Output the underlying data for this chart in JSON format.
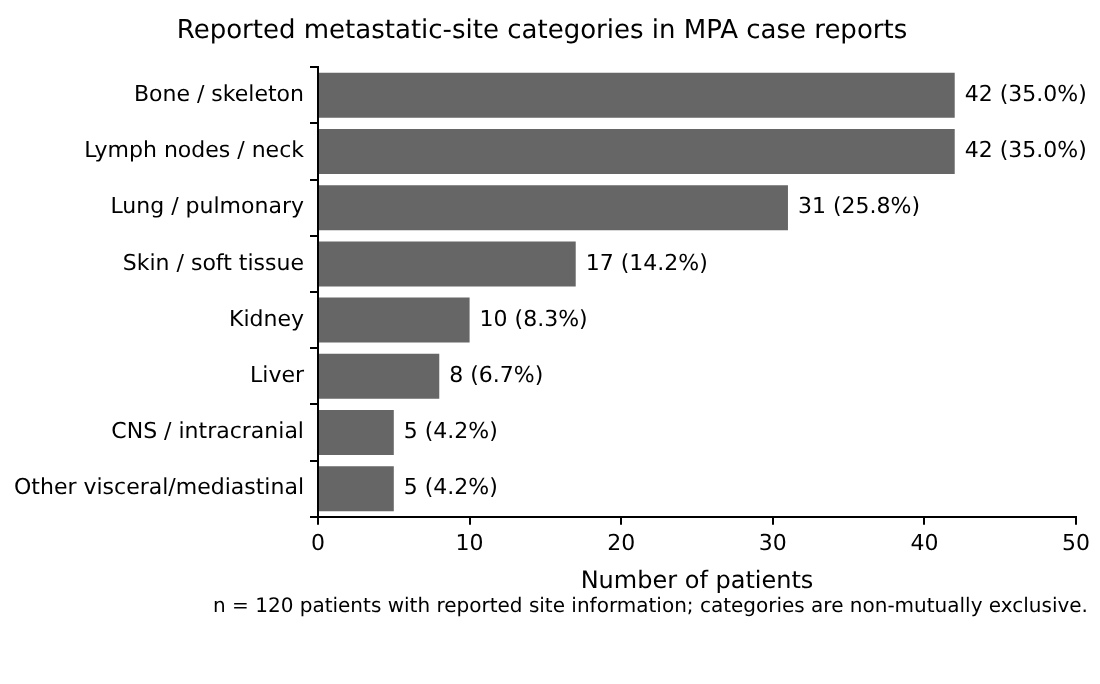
{
  "chart_data": {
    "type": "bar",
    "orientation": "horizontal",
    "title": "Reported metastatic-site categories in MPA case reports",
    "xlabel": "Number of patients",
    "categories": [
      "Bone / skeleton",
      "Lymph nodes / neck",
      "Lung / pulmonary",
      "Skin / soft tissue",
      "Kidney",
      "Liver",
      "CNS / intracranial",
      "Other visceral/mediastinal"
    ],
    "values": [
      42,
      42,
      31,
      17,
      10,
      8,
      5,
      5
    ],
    "value_labels": [
      "42 (35.0%)",
      "42 (35.0%)",
      "31 (25.8%)",
      "17 (14.2%)",
      "10 (8.3%)",
      "8 (6.7%)",
      "5 (4.2%)",
      "5 (4.2%)"
    ],
    "color": "#666666",
    "xlim": [
      0,
      50
    ],
    "xticks": [
      0,
      10,
      20,
      30,
      40,
      50
    ],
    "grid": false,
    "legend": false,
    "annotations": [
      "n = 120 patients with reported site information; categories are non-mutually exclusive."
    ]
  }
}
